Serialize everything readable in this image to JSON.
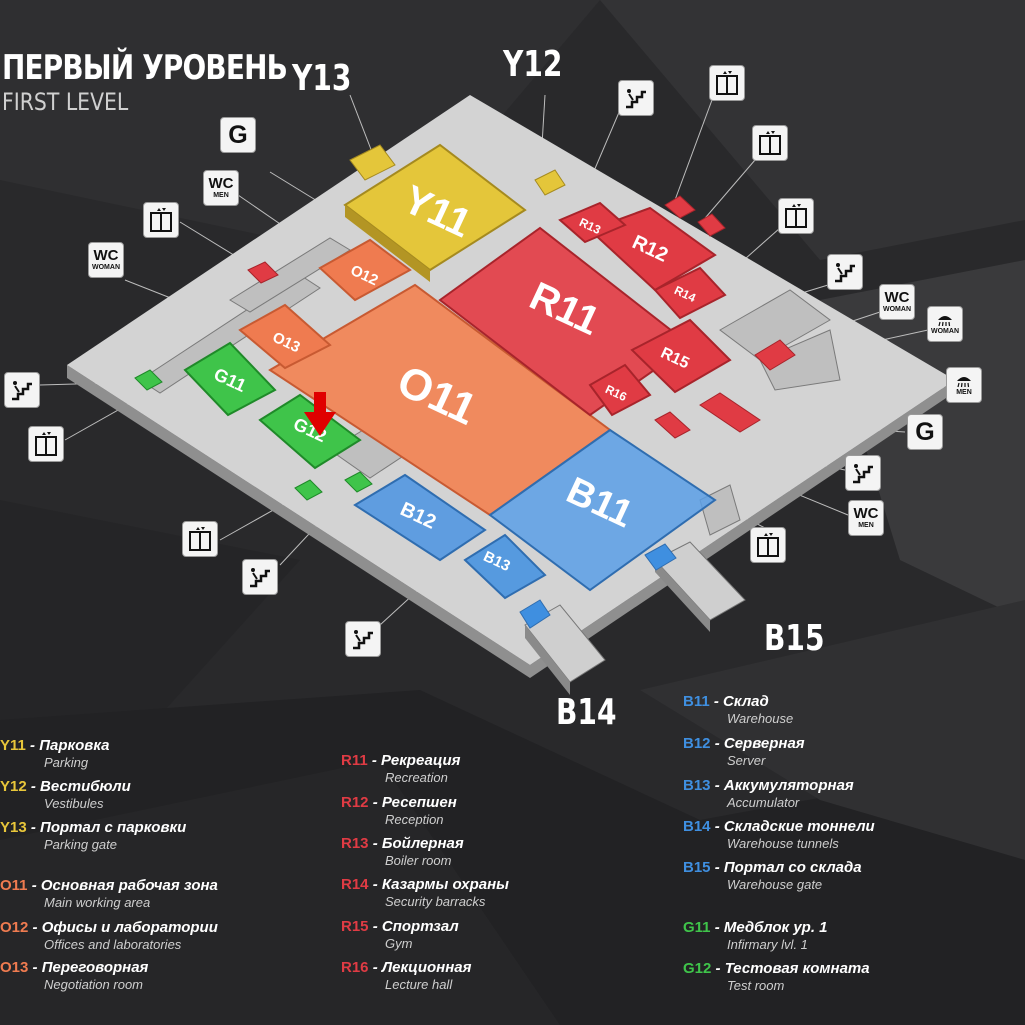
{
  "title": {
    "ru": "ПЕРВЫЙ УРОВЕНЬ",
    "en": "FIRST LEVEL"
  },
  "colors": {
    "yellow": "#e8c63a",
    "orange": "#ef7b50",
    "red": "#e03b44",
    "blue": "#3f8fe0",
    "green": "#3fc44a",
    "floor": "#cfcfcf",
    "marker": "#e00000"
  },
  "rooms": {
    "Y11": "Y11",
    "O11": "O11",
    "O12": "O12",
    "O13": "O13",
    "R11": "R11",
    "R12": "R12",
    "R13": "R13",
    "R14": "R14",
    "R15": "R15",
    "R16": "R16",
    "B11": "B11",
    "B12": "B12",
    "B13": "B13",
    "G11": "G11",
    "G12": "G12"
  },
  "callouts": {
    "Y13": "Y13",
    "Y12": "Y12",
    "B14": "B14",
    "B15": "B15"
  },
  "icons": {
    "wc_label": "WC",
    "men_label": "MEN",
    "woman_label": "WOMAN",
    "gate_label": "G",
    "names": [
      "elevator-icon",
      "stairs-icon",
      "wc-men-icon",
      "wc-woman-icon",
      "shower-woman-icon",
      "shower-men-icon",
      "gate-icon"
    ]
  },
  "marker": {
    "name": "current-location-arrow",
    "room": "G12"
  },
  "legend": {
    "yellow": [
      {
        "code": "Y11",
        "name": "Парковка",
        "en": "Parking"
      },
      {
        "code": "Y12",
        "name": "Вестибюли",
        "en": "Vestibules"
      },
      {
        "code": "Y13",
        "name": "Портал с парковки",
        "en": "Parking gate"
      }
    ],
    "orange": [
      {
        "code": "O11",
        "name": "Основная рабочая зона",
        "en": "Main working area"
      },
      {
        "code": "O12",
        "name": "Офисы и лаборатории",
        "en": "Offices and laboratories"
      },
      {
        "code": "O13",
        "name": "Переговорная",
        "en": "Negotiation room"
      }
    ],
    "red": [
      {
        "code": "R11",
        "name": "Рекреация",
        "en": "Recreation"
      },
      {
        "code": "R12",
        "name": "Ресепшен",
        "en": "Reception"
      },
      {
        "code": "R13",
        "name": "Бойлерная",
        "en": "Boiler room"
      },
      {
        "code": "R14",
        "name": "Казармы охраны",
        "en": "Security barracks"
      },
      {
        "code": "R15",
        "name": "Спортзал",
        "en": "Gym"
      },
      {
        "code": "R16",
        "name": "Лекционная",
        "en": "Lecture hall"
      }
    ],
    "blue": [
      {
        "code": "B11",
        "name": "Склад",
        "en": "Warehouse"
      },
      {
        "code": "B12",
        "name": "Серверная",
        "en": "Server"
      },
      {
        "code": "B13",
        "name": "Аккумуляторная",
        "en": "Accumulator"
      },
      {
        "code": "B14",
        "name": "Складские тоннели",
        "en": "Warehouse tunnels"
      },
      {
        "code": "B15",
        "name": "Портал со склада",
        "en": "Warehouse gate"
      }
    ],
    "green": [
      {
        "code": "G11",
        "name": "Медблок ур. 1",
        "en": "Infirmary lvl. 1"
      },
      {
        "code": "G12",
        "name": "Тестовая комната",
        "en": "Test room"
      }
    ]
  }
}
